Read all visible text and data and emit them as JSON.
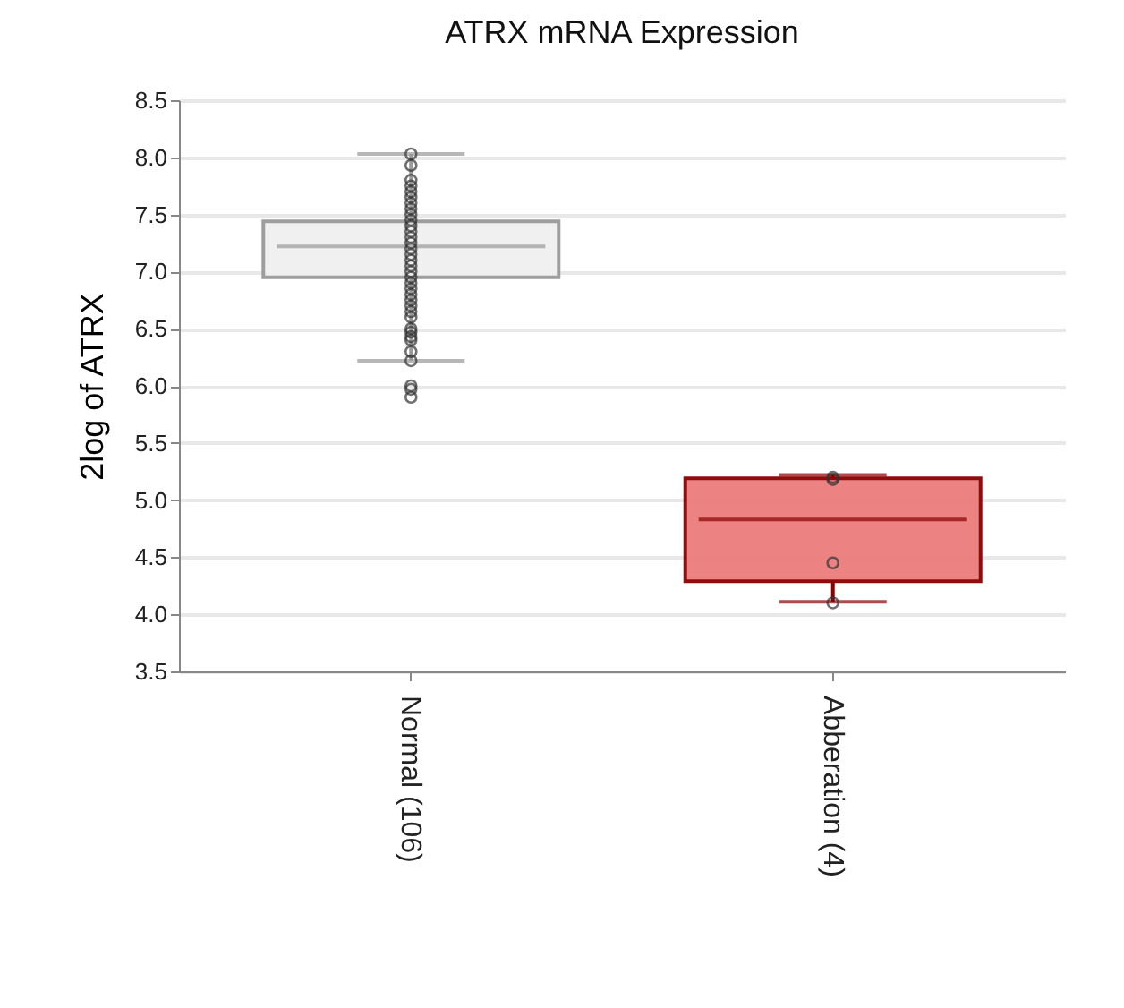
{
  "chart_data": {
    "type": "box",
    "title": "ATRX mRNA Expression",
    "ylabel": "2log of ATRX",
    "categories": [
      "Normal (106)",
      "Abberation (4)"
    ],
    "boxes": [
      {
        "low": 6.22,
        "q1": 6.95,
        "median": 7.22,
        "q3": 7.44,
        "high": 8.03
      },
      {
        "low": 4.11,
        "q1": 4.29,
        "median": 4.83,
        "q3": 5.19,
        "high": 5.22
      }
    ],
    "colors": [
      "#f0f0f0",
      "#ec7c7c"
    ],
    "series": [
      {
        "type": "scatter",
        "color": "#333333",
        "x": [
          "Normal (106)",
          "Normal (106)",
          "Normal (106)",
          "Normal (106)",
          "Normal (106)",
          "Normal (106)",
          "Normal (106)",
          "Normal (106)",
          "Normal (106)",
          "Normal (106)",
          "Normal (106)",
          "Normal (106)",
          "Normal (106)",
          "Normal (106)",
          "Normal (106)",
          "Normal (106)",
          "Normal (106)",
          "Normal (106)",
          "Normal (106)",
          "Normal (106)",
          "Normal (106)",
          "Normal (106)",
          "Normal (106)",
          "Normal (106)",
          "Normal (106)",
          "Normal (106)",
          "Normal (106)",
          "Normal (106)",
          "Normal (106)",
          "Normal (106)",
          "Normal (106)",
          "Normal (106)",
          "Normal (106)",
          "Normal (106)",
          "Normal (106)",
          "Normal (106)",
          "Abberation (4)",
          "Abberation (4)",
          "Abberation (4)",
          "Abberation (4)"
        ],
        "values": [
          8.03,
          7.93,
          7.8,
          7.75,
          7.7,
          7.65,
          7.6,
          7.55,
          7.5,
          7.45,
          7.4,
          7.35,
          7.3,
          7.25,
          7.2,
          7.15,
          7.1,
          7.05,
          7.0,
          6.95,
          6.9,
          6.85,
          6.8,
          6.75,
          6.7,
          6.65,
          6.6,
          6.5,
          6.47,
          6.43,
          6.4,
          6.3,
          6.22,
          6.0,
          5.97,
          5.9,
          5.2,
          5.18,
          4.45,
          4.1
        ]
      }
    ],
    "ylim": [
      3.5,
      8.5
    ],
    "yticks": [
      3.5,
      {
        "value": 4,
        "label": "4.0"
      },
      4.5,
      {
        "value": 5,
        "label": "5.0"
      },
      5.5,
      {
        "value": 6,
        "label": "6.0"
      },
      6.5,
      {
        "value": 7,
        "label": "7.0"
      },
      7.5,
      {
        "value": 8,
        "label": "8.0"
      },
      8.5
    ],
    "grid": "y",
    "marker": "circle"
  }
}
